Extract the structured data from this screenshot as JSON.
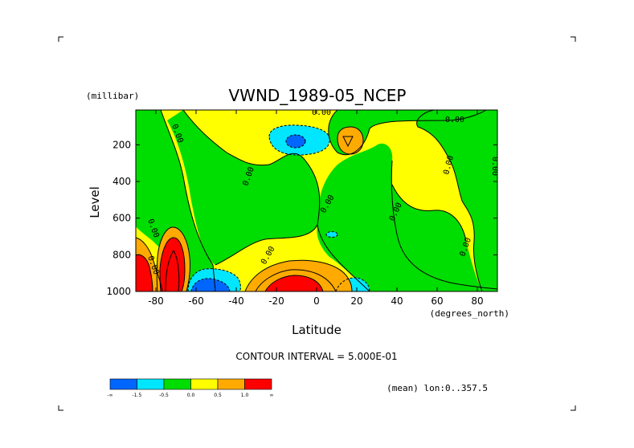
{
  "chart_data": {
    "type": "contour",
    "title": "VWND_1989-05_NCEP",
    "xlabel": "Latitude",
    "xunits": "(degrees_north)",
    "ylabel": "Level",
    "yunits": "(millibar)",
    "xlim": [
      -90,
      90
    ],
    "ylim": [
      1000,
      10
    ],
    "y_inverted": true,
    "x_ticks": [
      "-80",
      "-60",
      "-40",
      "-20",
      "0",
      "20",
      "40",
      "60",
      "80"
    ],
    "x_tick_values": [
      -80,
      -60,
      -40,
      -20,
      0,
      20,
      40,
      60,
      80
    ],
    "y_ticks": [
      "200",
      "400",
      "600",
      "800",
      "1000"
    ],
    "y_tick_values": [
      200,
      400,
      600,
      800,
      1000
    ],
    "contour_interval_text": "CONTOUR INTERVAL = 5.000E-01",
    "subset_text": "(mean) lon:0..357.5",
    "contour_labels": [
      "0.00",
      "0.00",
      "0.00",
      "0.00",
      "0.00",
      "0.00",
      "0.00",
      "0.00",
      "0.00",
      "0.00",
      "0.00",
      "0.00"
    ],
    "colorbar": {
      "colors": [
        "#0066ff",
        "#00e6ff",
        "#00dd00",
        "#ffff00",
        "#ffaa00",
        "#ff0000"
      ],
      "labels": [
        "-∞",
        "-1.5",
        "-0.5",
        "0.0",
        "0.5",
        "1.0",
        "∞"
      ]
    },
    "features": [
      {
        "name": "strong positive core",
        "lat": -87,
        "level": 900,
        "sign": "positive"
      },
      {
        "name": "strong positive core",
        "lat": -74,
        "level": 900,
        "sign": "positive"
      },
      {
        "name": "strong positive core",
        "lat": -12,
        "level": 970,
        "sign": "positive"
      },
      {
        "name": "negative core",
        "lat": -58,
        "level": 970,
        "sign": "negative"
      },
      {
        "name": "negative core",
        "lat": -13,
        "level": 160,
        "sign": "negative"
      },
      {
        "name": "positive cell",
        "lat": 15,
        "level": 170,
        "sign": "positive"
      },
      {
        "name": "negative cell",
        "lat": 20,
        "level": 980,
        "sign": "negative"
      }
    ]
  }
}
